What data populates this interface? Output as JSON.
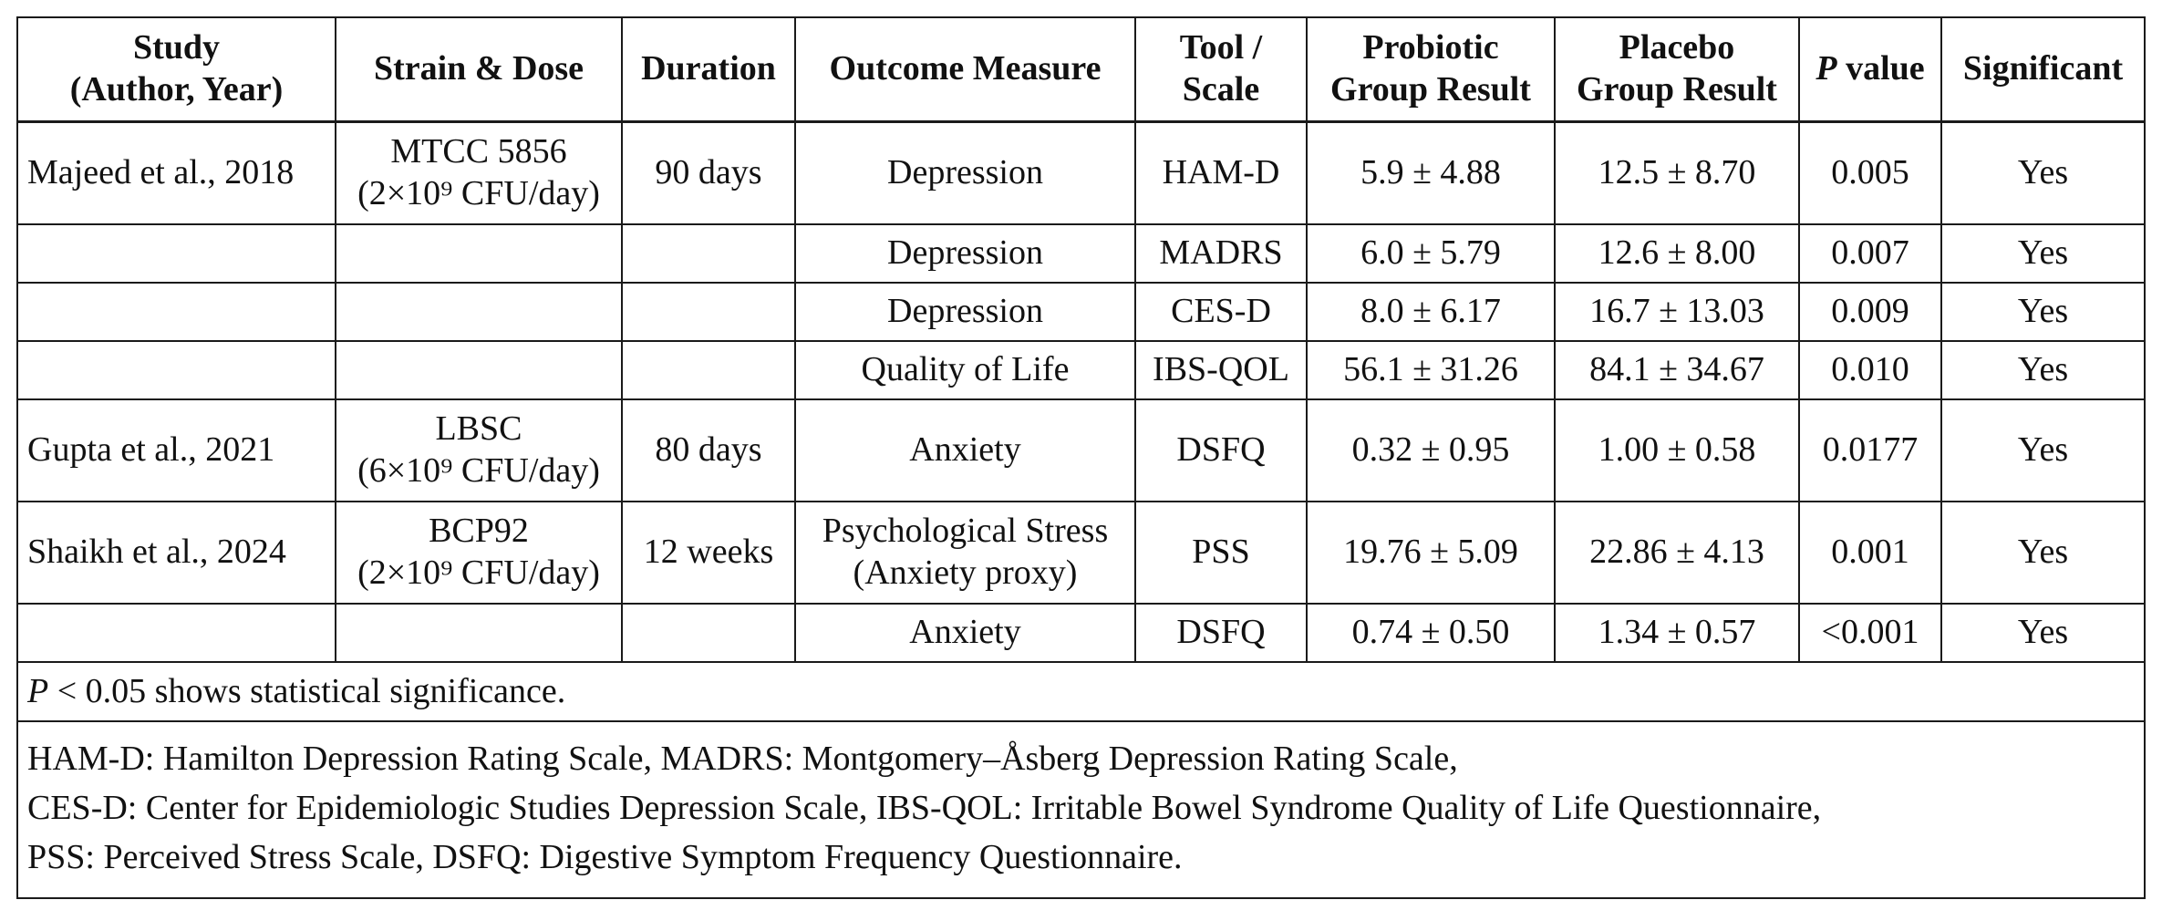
{
  "table": {
    "headers": {
      "study": [
        "Study",
        "(Author, Year)"
      ],
      "strain": "Strain & Dose",
      "duration": "Duration",
      "outcome": "Outcome Measure",
      "tool": [
        "Tool /",
        "Scale"
      ],
      "probiotic": [
        "Probiotic",
        "Group Result"
      ],
      "placebo": [
        "Placebo",
        "Group Result"
      ],
      "pvalue_italic": "P",
      "pvalue_rest": " value",
      "significant": "Significant"
    },
    "rows": [
      {
        "study": "Majeed et al., 2018",
        "strain": [
          "MTCC 5856",
          "(2×10⁹ CFU/day)"
        ],
        "duration": "90 days",
        "outcome": [
          "Depression"
        ],
        "tool": "HAM-D",
        "probiotic": "5.9 ± 4.88",
        "placebo": "12.5 ± 8.70",
        "p": "0.005",
        "significant": "Yes"
      },
      {
        "study": "",
        "strain": [
          "",
          ""
        ],
        "duration": "",
        "outcome": [
          "Depression"
        ],
        "tool": "MADRS",
        "probiotic": "6.0 ± 5.79",
        "placebo": "12.6 ± 8.00",
        "p": "0.007",
        "significant": "Yes"
      },
      {
        "study": "",
        "strain": [
          "",
          ""
        ],
        "duration": "",
        "outcome": [
          "Depression"
        ],
        "tool": "CES-D",
        "probiotic": "8.0 ± 6.17",
        "placebo": "16.7 ± 13.03",
        "p": "0.009",
        "significant": "Yes"
      },
      {
        "study": "",
        "strain": [
          "",
          ""
        ],
        "duration": "",
        "outcome": [
          "Quality of Life"
        ],
        "tool": "IBS-QOL",
        "probiotic": "56.1 ± 31.26",
        "placebo": "84.1 ± 34.67",
        "p": "0.010",
        "significant": "Yes"
      },
      {
        "study": "Gupta et al., 2021",
        "strain": [
          "LBSC",
          "(6×10⁹ CFU/day)"
        ],
        "duration": "80 days",
        "outcome": [
          "Anxiety"
        ],
        "tool": "DSFQ",
        "probiotic": "0.32 ± 0.95",
        "placebo": "1.00 ± 0.58",
        "p": "0.0177",
        "significant": "Yes"
      },
      {
        "study": "Shaikh et al., 2024",
        "strain": [
          "BCP92",
          "(2×10⁹ CFU/day)"
        ],
        "duration": "12 weeks",
        "outcome": [
          "Psychological Stress",
          "(Anxiety proxy)"
        ],
        "tool": "PSS",
        "probiotic": "19.76 ± 5.09",
        "placebo": "22.86 ± 4.13",
        "p": "0.001",
        "significant": "Yes"
      },
      {
        "study": "",
        "strain": [
          "",
          ""
        ],
        "duration": "",
        "outcome": [
          "Anxiety"
        ],
        "tool": "DSFQ",
        "probiotic": "0.74 ± 0.50",
        "placebo": "1.34 ± 0.57",
        "p": "<0.001",
        "significant": "Yes"
      }
    ],
    "note": {
      "p_italic": "P",
      "rest": " < 0.05 shows statistical significance."
    },
    "abbreviations": [
      "HAM-D: Hamilton Depression Rating Scale, MADRS: Montgomery–Åsberg Depression Rating Scale,",
      "CES-D: Center for Epidemiologic Studies Depression Scale, IBS-QOL: Irritable Bowel Syndrome Quality of Life Questionnaire,",
      "PSS: Perceived Stress Scale, DSFQ: Digestive Symptom Frequency Questionnaire."
    ]
  }
}
